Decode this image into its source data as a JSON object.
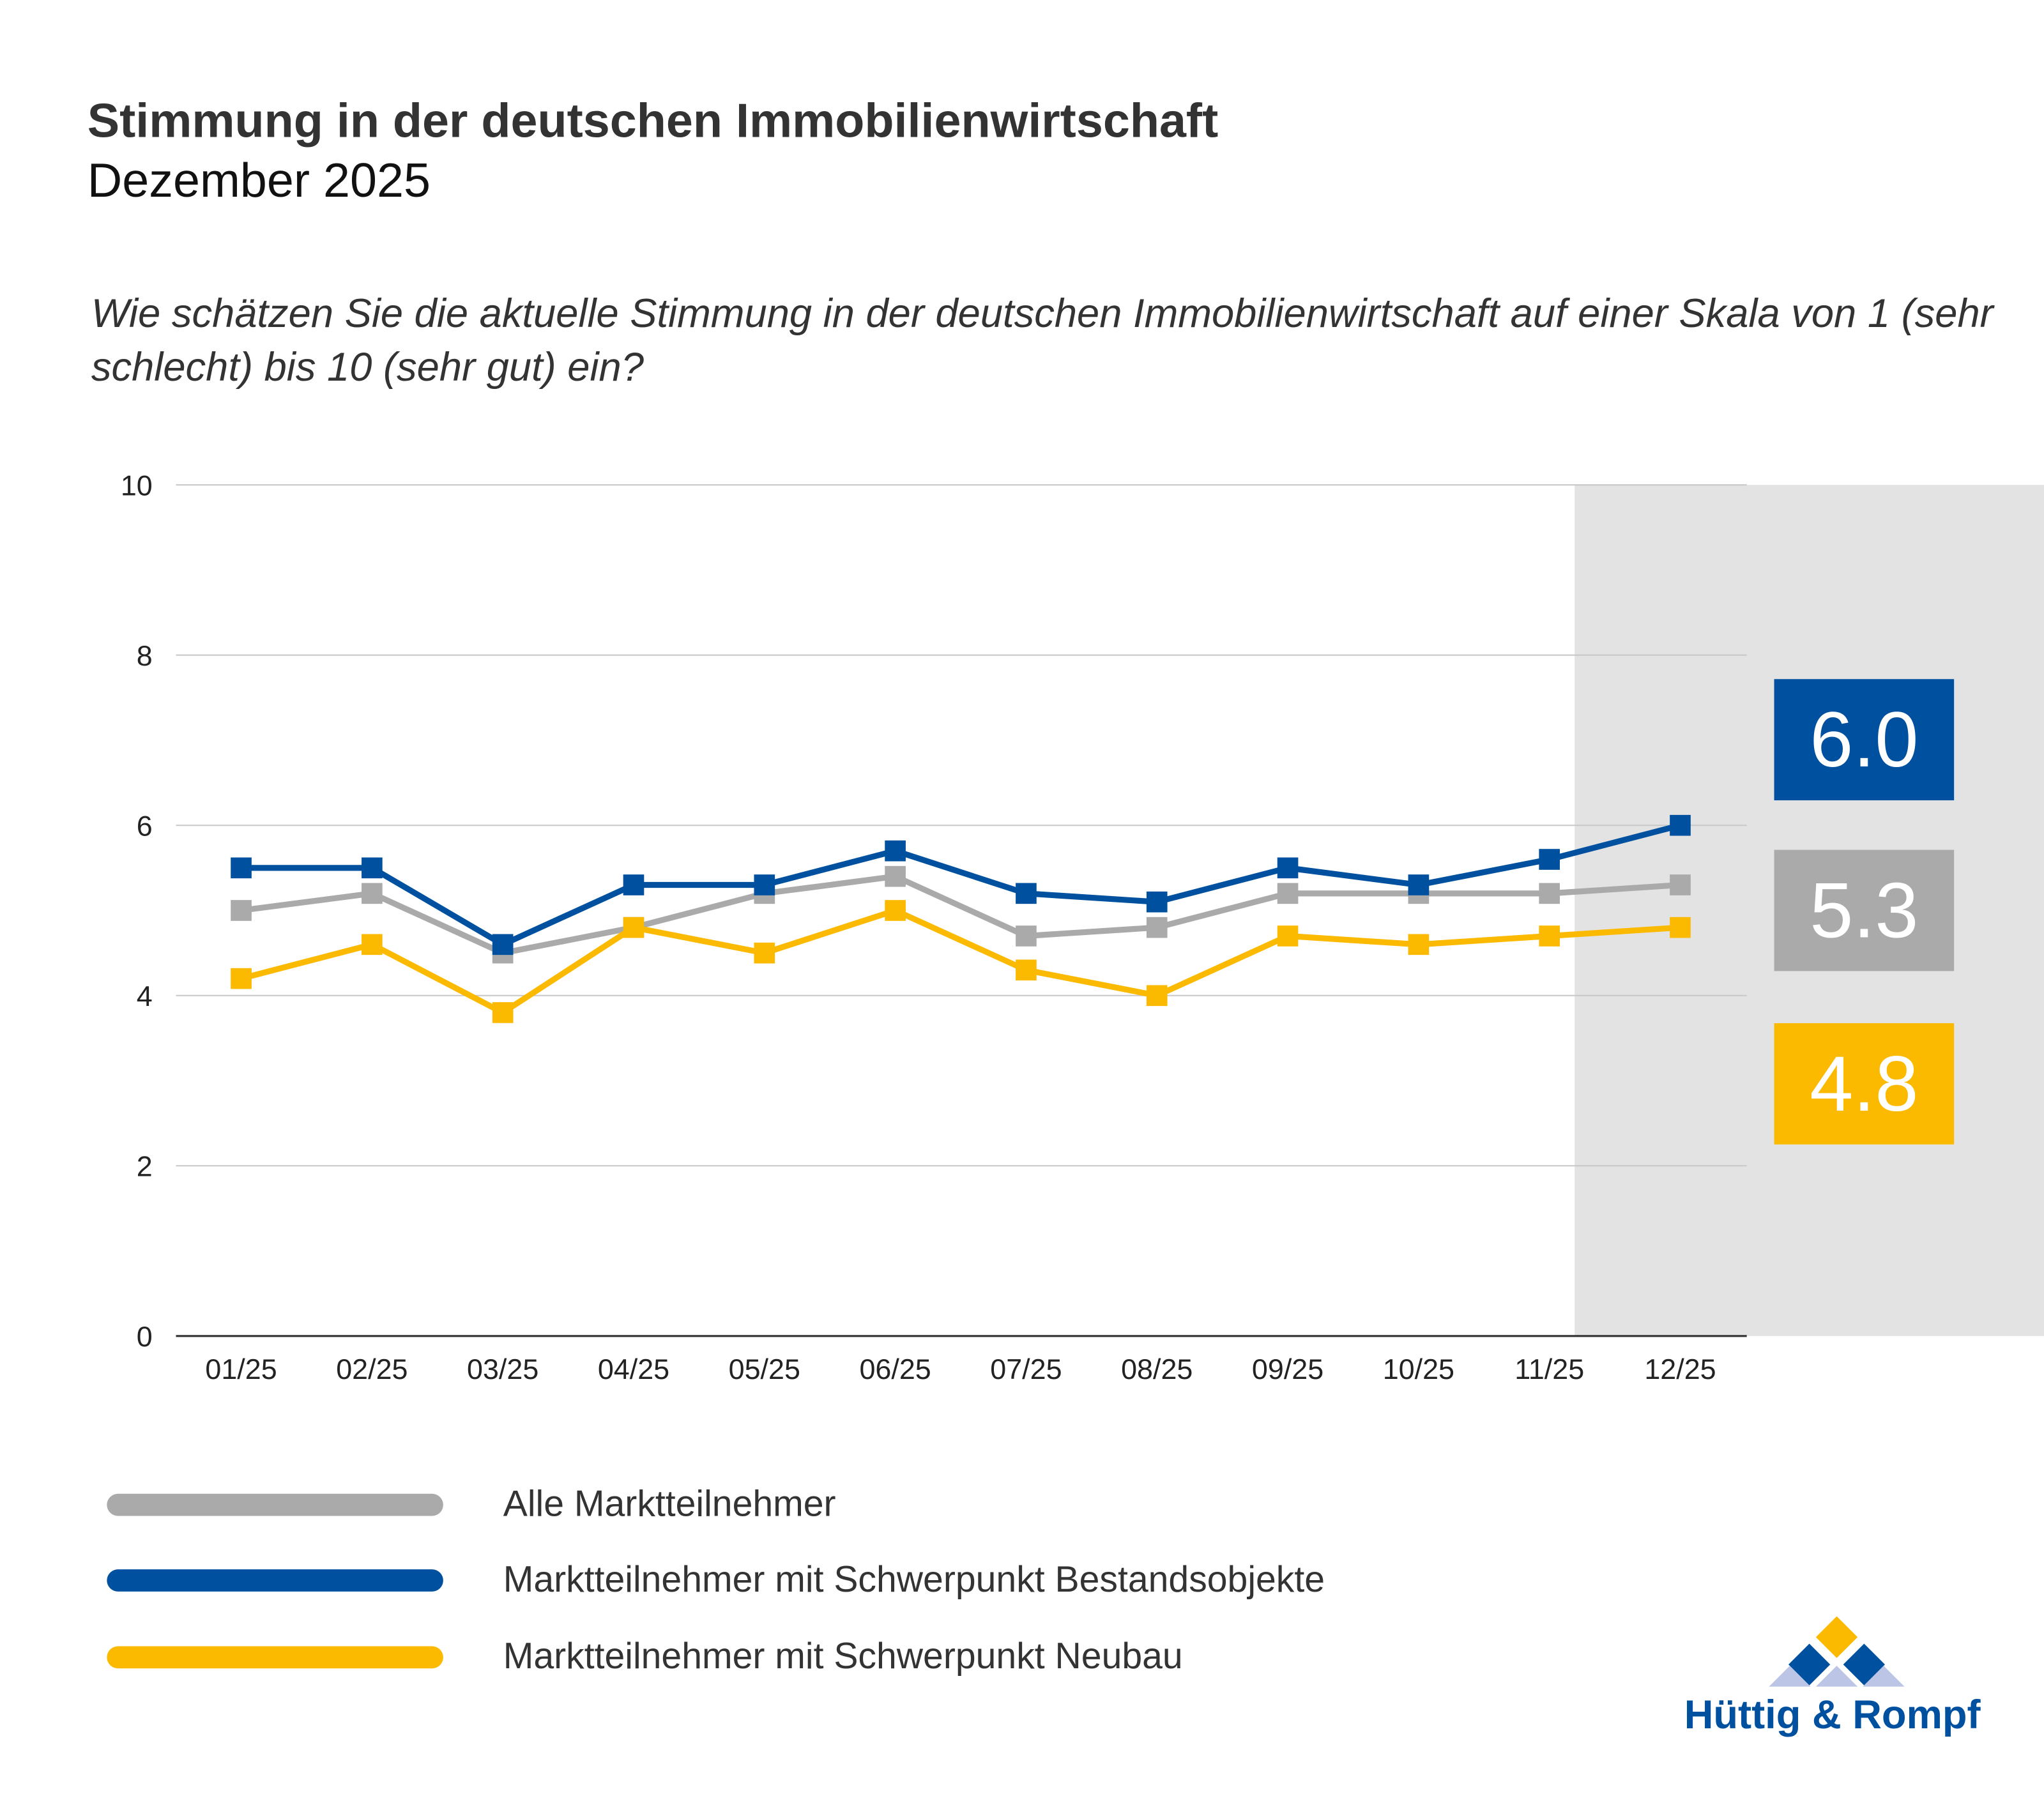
{
  "header": {
    "title": "Stimmung in der deutschen Immobilienwirtschaft",
    "subtitle": "Dezember 2025",
    "question": "Wie schätzen Sie die aktuelle Stimmung in der deutschen Immobilienwirtschaft auf einer Skala von 1 (sehr schlecht) bis 10 (sehr gut) ein?"
  },
  "chart_data": {
    "type": "line",
    "categories": [
      "01/25",
      "02/25",
      "03/25",
      "04/25",
      "05/25",
      "06/25",
      "07/25",
      "08/25",
      "09/25",
      "10/25",
      "11/25",
      "12/25"
    ],
    "ylim": [
      0,
      10
    ],
    "yticks": [
      0,
      2,
      4,
      6,
      8,
      10
    ],
    "grid": true,
    "highlight_category": "12/25",
    "series": [
      {
        "name": "Alle Marktteilnehmer",
        "color": "#AAAAAA",
        "values": [
          5.0,
          5.2,
          4.5,
          4.8,
          5.2,
          5.4,
          4.7,
          4.8,
          5.2,
          5.2,
          5.2,
          5.3
        ],
        "latest_label": "5.3"
      },
      {
        "name": "Marktteilnehmer mit Schwerpunkt Bestandsobjekte",
        "color": "#0050A0",
        "values": [
          5.5,
          5.5,
          4.6,
          5.3,
          5.3,
          5.7,
          5.2,
          5.1,
          5.5,
          5.3,
          5.6,
          6.0
        ],
        "latest_label": "6.0"
      },
      {
        "name": "Marktteilnehmer mit Schwerpunkt Neubau",
        "color": "#FBB900",
        "values": [
          4.2,
          4.6,
          3.8,
          4.8,
          4.5,
          5.0,
          4.3,
          4.0,
          4.7,
          4.6,
          4.7,
          4.8
        ],
        "latest_label": "4.8"
      }
    ],
    "legend_placement": "bottom-left"
  },
  "logo": {
    "text": "Hüttig & Rompf"
  }
}
